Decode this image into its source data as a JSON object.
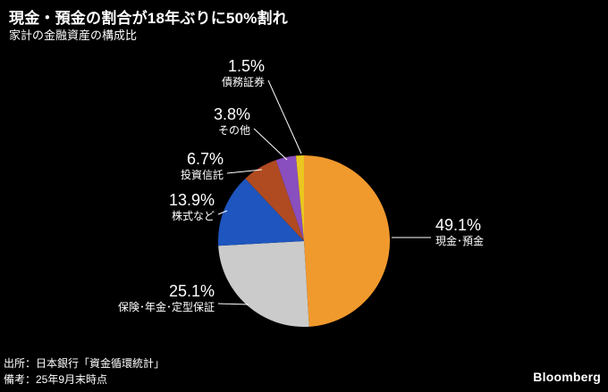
{
  "header": {
    "title": "現金・預金の割合が18年ぶりに50%割れ",
    "subtitle": "家計の金融資産の構成比"
  },
  "chart_data": {
    "type": "pie",
    "title": "現金・預金の割合が18年ぶりに50%割れ",
    "subtitle": "家計の金融資産の構成比",
    "unit": "%",
    "direction": "clockwise",
    "start_angle": "12-oclock",
    "slices": [
      {
        "label": "現金･預金",
        "value": 49.1,
        "pct_label": "49.1%",
        "color": "#F0992D"
      },
      {
        "label": "保険･年金･定型保証",
        "value": 25.1,
        "pct_label": "25.1%",
        "color": "#CBCBCB"
      },
      {
        "label": "株式など",
        "value": 13.9,
        "pct_label": "13.9%",
        "color": "#1E55BE"
      },
      {
        "label": "投資信託",
        "value": 6.7,
        "pct_label": "6.7%",
        "color": "#B04A21"
      },
      {
        "label": "その他",
        "value": 3.8,
        "pct_label": "3.8%",
        "color": "#8A4FBE"
      },
      {
        "label": "債務証券",
        "value": 1.5,
        "pct_label": "1.5%",
        "color": "#E9C71F"
      }
    ]
  },
  "footer": {
    "source": "出所：日本銀行「資金循環統計」",
    "note": "備考：25年9月末時点",
    "brand": "Bloomberg"
  }
}
